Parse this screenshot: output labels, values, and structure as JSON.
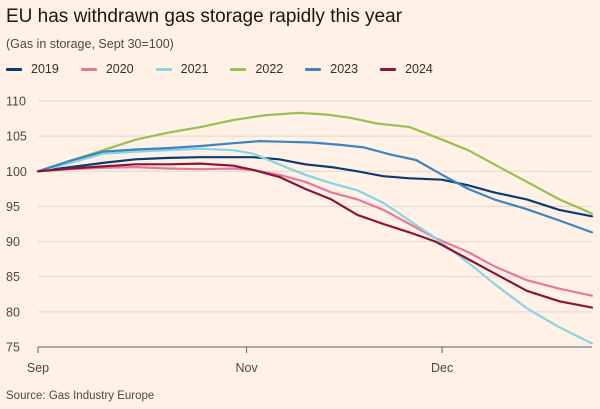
{
  "chart_data": {
    "type": "line",
    "title": "EU has withdrawn gas storage rapidly this year",
    "subtitle": "(Gas in storage, Sept 30=100)",
    "source": "Source: Gas Industry Europe",
    "xlabel": "",
    "ylabel": "",
    "ylim": [
      75,
      110
    ],
    "yticks": [
      75,
      80,
      85,
      90,
      95,
      100,
      105,
      110
    ],
    "xlim": [
      0,
      85
    ],
    "xticks": [
      {
        "label": "Sep",
        "day": 0
      },
      {
        "label": "Nov",
        "day": 32
      },
      {
        "label": "Dec",
        "day": 62
      }
    ],
    "x_unit": "days since Sept 30",
    "series": [
      {
        "name": "2019",
        "color": "#0d3a73",
        "points": [
          [
            0,
            100
          ],
          [
            5,
            100.6
          ],
          [
            10,
            101.2
          ],
          [
            15,
            101.7
          ],
          [
            20,
            101.9
          ],
          [
            25,
            102.0
          ],
          [
            30,
            102.0
          ],
          [
            33,
            102.0
          ],
          [
            37,
            101.7
          ],
          [
            41,
            101.0
          ],
          [
            45,
            100.6
          ],
          [
            49,
            100.0
          ],
          [
            53,
            99.3
          ],
          [
            57,
            99.0
          ],
          [
            62,
            98.8
          ],
          [
            66,
            98.0
          ],
          [
            70,
            97.0
          ],
          [
            75,
            96.0
          ],
          [
            80,
            94.5
          ],
          [
            85,
            93.6
          ]
        ]
      },
      {
        "name": "2020",
        "color": "#e6789c",
        "points": [
          [
            0,
            100
          ],
          [
            5,
            100.3
          ],
          [
            10,
            100.5
          ],
          [
            15,
            100.6
          ],
          [
            20,
            100.4
          ],
          [
            25,
            100.3
          ],
          [
            30,
            100.4
          ],
          [
            33,
            100.2
          ],
          [
            37,
            99.5
          ],
          [
            41,
            98.5
          ],
          [
            45,
            97.0
          ],
          [
            49,
            96.0
          ],
          [
            53,
            94.5
          ],
          [
            57,
            92.5
          ],
          [
            61,
            90.5
          ],
          [
            66,
            88.5
          ],
          [
            70,
            86.5
          ],
          [
            75,
            84.5
          ],
          [
            80,
            83.3
          ],
          [
            85,
            82.3
          ]
        ]
      },
      {
        "name": "2021",
        "color": "#86d4e4",
        "points": [
          [
            0,
            100
          ],
          [
            5,
            101.2
          ],
          [
            10,
            102.5
          ],
          [
            15,
            102.8
          ],
          [
            20,
            103.0
          ],
          [
            25,
            103.2
          ],
          [
            30,
            103.0
          ],
          [
            33,
            102.5
          ],
          [
            37,
            101.0
          ],
          [
            41,
            99.5
          ],
          [
            45,
            98.3
          ],
          [
            49,
            97.3
          ],
          [
            53,
            95.5
          ],
          [
            57,
            93.0
          ],
          [
            61,
            90.5
          ],
          [
            66,
            87.0
          ],
          [
            70,
            84.0
          ],
          [
            75,
            80.5
          ],
          [
            80,
            77.8
          ],
          [
            85,
            75.5
          ]
        ]
      },
      {
        "name": "2022",
        "color": "#96c153",
        "points": [
          [
            0,
            100
          ],
          [
            5,
            101.5
          ],
          [
            10,
            103.0
          ],
          [
            15,
            104.5
          ],
          [
            20,
            105.5
          ],
          [
            25,
            106.3
          ],
          [
            30,
            107.3
          ],
          [
            35,
            108.0
          ],
          [
            40,
            108.3
          ],
          [
            44,
            108.1
          ],
          [
            48,
            107.6
          ],
          [
            52,
            106.8
          ],
          [
            57,
            106.3
          ],
          [
            62,
            104.5
          ],
          [
            66,
            103.0
          ],
          [
            70,
            101.0
          ],
          [
            75,
            98.5
          ],
          [
            80,
            96.0
          ],
          [
            85,
            94.0
          ]
        ]
      },
      {
        "name": "2023",
        "color": "#3c85c3",
        "points": [
          [
            0,
            100
          ],
          [
            5,
            101.5
          ],
          [
            10,
            102.8
          ],
          [
            15,
            103.1
          ],
          [
            20,
            103.3
          ],
          [
            25,
            103.6
          ],
          [
            30,
            104.0
          ],
          [
            34,
            104.3
          ],
          [
            38,
            104.2
          ],
          [
            42,
            104.1
          ],
          [
            46,
            103.8
          ],
          [
            50,
            103.4
          ],
          [
            54,
            102.4
          ],
          [
            58,
            101.6
          ],
          [
            62,
            99.5
          ],
          [
            66,
            97.5
          ],
          [
            70,
            96.0
          ],
          [
            75,
            94.6
          ],
          [
            80,
            93.0
          ],
          [
            85,
            91.3
          ]
        ]
      },
      {
        "name": "2024",
        "color": "#8a1538",
        "points": [
          [
            0,
            100
          ],
          [
            5,
            100.4
          ],
          [
            10,
            100.7
          ],
          [
            15,
            101.0
          ],
          [
            20,
            101.0
          ],
          [
            25,
            101.1
          ],
          [
            30,
            100.8
          ],
          [
            33,
            100.2
          ],
          [
            37,
            99.2
          ],
          [
            41,
            97.5
          ],
          [
            45,
            96.0
          ],
          [
            49,
            93.8
          ],
          [
            53,
            92.5
          ],
          [
            57,
            91.3
          ],
          [
            61,
            90.0
          ],
          [
            66,
            87.5
          ],
          [
            70,
            85.5
          ],
          [
            75,
            83.0
          ],
          [
            80,
            81.5
          ],
          [
            85,
            80.6
          ]
        ]
      }
    ]
  }
}
